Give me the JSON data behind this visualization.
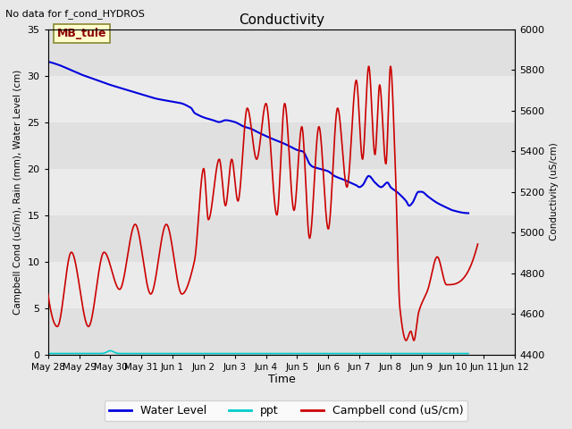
{
  "title": "Conductivity",
  "top_left_text": "No data for f_cond_HYDROS",
  "annotation_box": "MB_tule",
  "xlabel": "Time",
  "ylabel_left": "Campbell Cond (uS/m), Rain (mm), Water Level (cm)",
  "ylabel_right": "Conductivity (uS/cm)",
  "ylim_left": [
    0,
    35
  ],
  "ylim_right": [
    4400,
    6000
  ],
  "xtick_labels": [
    "May 28",
    "May 29",
    "May 30",
    "May 31",
    "Jun 1",
    "Jun 2",
    "Jun 3",
    "Jun 4",
    "Jun 5",
    "Jun 6",
    "Jun 7",
    "Jun 8",
    "Jun 9",
    "Jun 10",
    "Jun 11",
    "Jun 12"
  ],
  "yticks_left": [
    0,
    5,
    10,
    15,
    20,
    25,
    30,
    35
  ],
  "yticks_right": [
    4400,
    4600,
    4800,
    5000,
    5200,
    5400,
    5600,
    5800,
    6000
  ],
  "water_level_color": "#0000dd",
  "ppt_color": "#00cccc",
  "campbell_cond_color": "#cc0000",
  "bg_color": "#e8e8e8",
  "band_colors": [
    "#e0e0e0",
    "#ebebeb"
  ],
  "legend_labels": [
    "Water Level",
    "ppt",
    "Campbell cond (uS/cm)"
  ]
}
